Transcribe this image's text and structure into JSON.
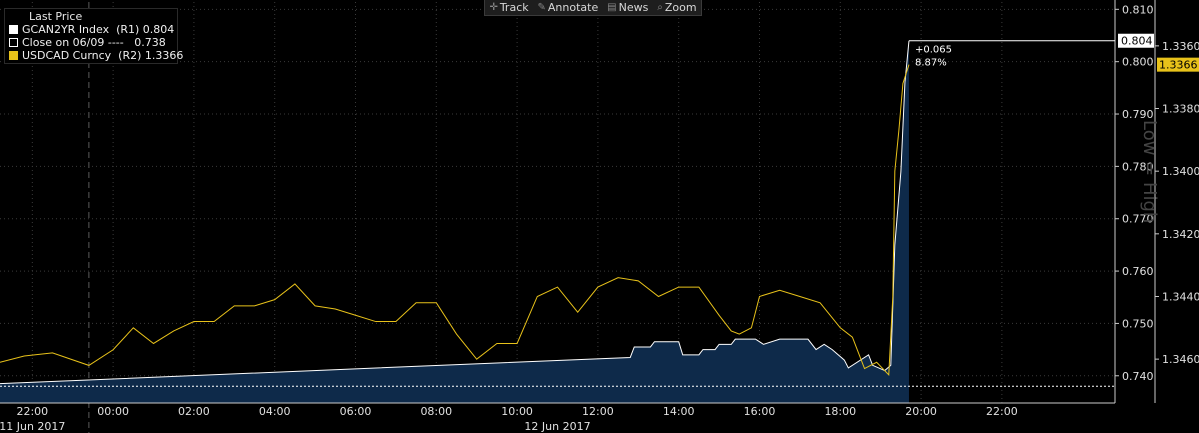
{
  "toolbar": {
    "track": "Track",
    "annotate": "Annotate",
    "news": "News",
    "zoom": "Zoom"
  },
  "legend": {
    "title": "Last Price",
    "row1": "GCAN2YR Index  (R1) 0.804",
    "row2": "Close on 06/09 ----   0.738",
    "row3": "USDCAD Curncy  (R2) 1.3366"
  },
  "watermark": "Low = High",
  "annotation": {
    "change": "+0.065",
    "pct": "8.87%"
  },
  "colors": {
    "yield_fill": "#0e2a4a",
    "yield_line": "#ffffff",
    "usdcad": "#e8c21a",
    "grid": "#3a3a3a",
    "dashed": "#5a5a5a"
  },
  "chart_data": {
    "type": "line",
    "x_ticks": [
      "22:00",
      "00:00",
      "02:00",
      "04:00",
      "06:00",
      "08:00",
      "10:00",
      "12:00",
      "14:00",
      "16:00",
      "18:00",
      "20:00",
      "22:00"
    ],
    "x_dates": [
      "11 Jun 2017",
      "12 Jun 2017"
    ],
    "xlim_hours": [
      -2.8,
      24.8
    ],
    "axis_r1": {
      "ticks": [
        "0.810",
        "0.800",
        "0.790",
        "0.780",
        "0.770",
        "0.760",
        "0.750",
        "0.740"
      ],
      "ylim": [
        0.7348,
        0.8114
      ]
    },
    "axis_r2": {
      "ticks": [
        "1.3360",
        "1.3380",
        "1.3400",
        "1.3420",
        "1.3440",
        "1.3460"
      ],
      "ylim": [
        1.3346,
        1.3474
      ],
      "inverted": true
    },
    "series": [
      {
        "name": "GCAN2YR Index",
        "axis": "R1",
        "last": 0.804,
        "x": [
          -2.8,
          12.8,
          12.9,
          13.3,
          13.4,
          14.0,
          14.1,
          14.5,
          14.6,
          14.9,
          15.0,
          15.3,
          15.4,
          15.9,
          16.1,
          16.5,
          16.7,
          17.2,
          17.4,
          17.6,
          17.8,
          18.1,
          18.2,
          18.7,
          18.8,
          19.1,
          19.25,
          19.35,
          19.5,
          19.6,
          19.7
        ],
        "y": [
          0.7385,
          0.7435,
          0.7455,
          0.7455,
          0.7465,
          0.7465,
          0.744,
          0.744,
          0.745,
          0.745,
          0.746,
          0.746,
          0.747,
          0.747,
          0.746,
          0.747,
          0.747,
          0.747,
          0.745,
          0.746,
          0.745,
          0.743,
          0.7415,
          0.744,
          0.742,
          0.741,
          0.742,
          0.765,
          0.779,
          0.796,
          0.804
        ]
      },
      {
        "name": "USDCAD Curncy",
        "axis": "R2",
        "last": 1.3366,
        "x": [
          -2.8,
          -2.2,
          -1.5,
          -0.6,
          0.0,
          0.5,
          1.0,
          1.5,
          2.0,
          2.5,
          3.0,
          3.5,
          4.0,
          4.5,
          5.0,
          5.5,
          6.0,
          6.5,
          7.0,
          7.5,
          8.0,
          8.5,
          9.0,
          9.5,
          10.0,
          10.5,
          11.0,
          11.5,
          12.0,
          12.5,
          13.0,
          13.5,
          14.0,
          14.5,
          15.0,
          15.3,
          15.5,
          15.8,
          16.0,
          16.5,
          17.0,
          17.5,
          18.0,
          18.3,
          18.6,
          18.9,
          19.2,
          19.3,
          19.35,
          19.45,
          19.55,
          19.7
        ],
        "y": [
          1.3461,
          1.3459,
          1.3458,
          1.3462,
          1.3457,
          1.345,
          1.3455,
          1.3451,
          1.3448,
          1.3448,
          1.3443,
          1.3443,
          1.3441,
          1.3436,
          1.3443,
          1.3444,
          1.3446,
          1.3448,
          1.3448,
          1.3442,
          1.3442,
          1.3452,
          1.346,
          1.3455,
          1.3455,
          1.344,
          1.3437,
          1.3445,
          1.3437,
          1.3434,
          1.3435,
          1.344,
          1.3437,
          1.3437,
          1.3446,
          1.3451,
          1.3452,
          1.345,
          1.344,
          1.3438,
          1.344,
          1.3442,
          1.345,
          1.3453,
          1.3463,
          1.3461,
          1.3465,
          1.344,
          1.34,
          1.3387,
          1.3372,
          1.3366
        ]
      }
    ]
  }
}
